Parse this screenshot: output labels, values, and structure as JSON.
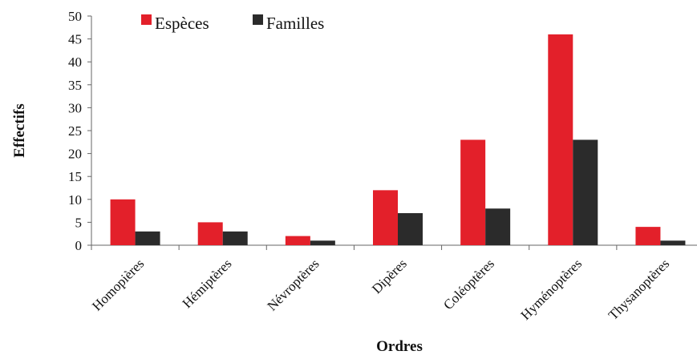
{
  "chart_data": {
    "type": "bar",
    "categories": [
      "Homopières",
      "Hémiptères",
      "Névroptères",
      "Dipères",
      "Coléoptères",
      "Hyménoptères",
      "Thysanoptères"
    ],
    "series": [
      {
        "name": "Espèces",
        "color": "#e3202a",
        "values": [
          10,
          5,
          2,
          12,
          23,
          46,
          4
        ]
      },
      {
        "name": "Familles",
        "color": "#2b2b2b",
        "values": [
          3,
          3,
          1,
          7,
          8,
          23,
          1
        ]
      }
    ],
    "xlabel": "Ordres",
    "ylabel": "Effectifs",
    "ylim": [
      0,
      50
    ],
    "yticks": [
      0,
      5,
      10,
      15,
      20,
      25,
      30,
      35,
      40,
      45,
      50
    ],
    "grid": false,
    "legend": "top-left"
  }
}
